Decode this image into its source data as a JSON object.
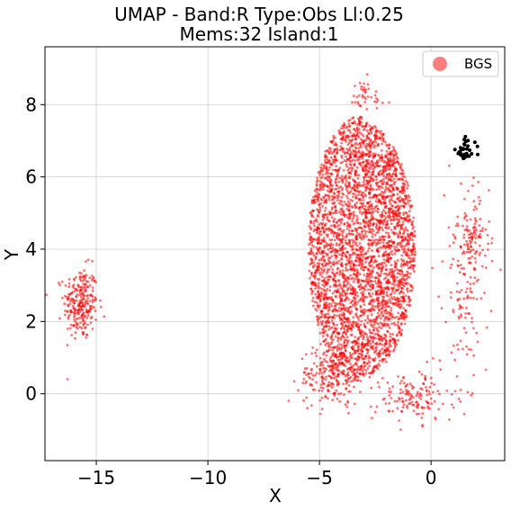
{
  "chart_data": {
    "type": "scatter",
    "title_line1": "UMAP  -  Band:R Type:Obs Ll:0.25",
    "title_line2": "Mems:32 Island:1",
    "xlabel": "X",
    "ylabel": "Y",
    "xlim": [
      -17.3,
      3.3
    ],
    "ylim": [
      -1.85,
      9.6
    ],
    "xticks": [
      -15,
      -10,
      -5,
      0
    ],
    "xtick_labels": [
      "−15",
      "−10",
      "−5",
      "0"
    ],
    "yticks": [
      0,
      2,
      4,
      6,
      8
    ],
    "ytick_labels": [
      "0",
      "2",
      "4",
      "6",
      "8"
    ],
    "grid": true,
    "legend_position": "top-right",
    "series": [
      {
        "name": "BGS",
        "color": "#ff0000",
        "alpha": 0.55,
        "clusters": [
          {
            "shape": "blob",
            "center": [
              -15.7,
              2.5
            ],
            "spread": [
              0.38,
              0.5
            ],
            "count": 260
          },
          {
            "shape": "blob",
            "center": [
              -3.1,
              4.0
            ],
            "spread": [
              2.4,
              3.7
            ],
            "count": 3600
          },
          {
            "shape": "blob",
            "center": [
              -4.5,
              0.5
            ],
            "spread": [
              0.7,
              0.4
            ],
            "count": 220
          },
          {
            "shape": "blob",
            "center": [
              -0.8,
              -0.1
            ],
            "spread": [
              0.9,
              0.35
            ],
            "count": 150
          },
          {
            "shape": "blob",
            "center": [
              1.6,
              3.2
            ],
            "spread": [
              0.5,
              1.3
            ],
            "count": 160
          },
          {
            "shape": "blob",
            "center": [
              1.9,
              4.4
            ],
            "spread": [
              0.4,
              0.25
            ],
            "count": 60
          },
          {
            "shape": "blob",
            "center": [
              -3.0,
              8.2
            ],
            "spread": [
              0.5,
              0.25
            ],
            "count": 40
          }
        ]
      },
      {
        "name": "",
        "color": "#000000",
        "alpha": 1.0,
        "clusters": [
          {
            "shape": "blob",
            "center": [
              1.55,
              6.75
            ],
            "spread": [
              0.22,
              0.18
            ],
            "count": 32
          }
        ]
      }
    ]
  }
}
